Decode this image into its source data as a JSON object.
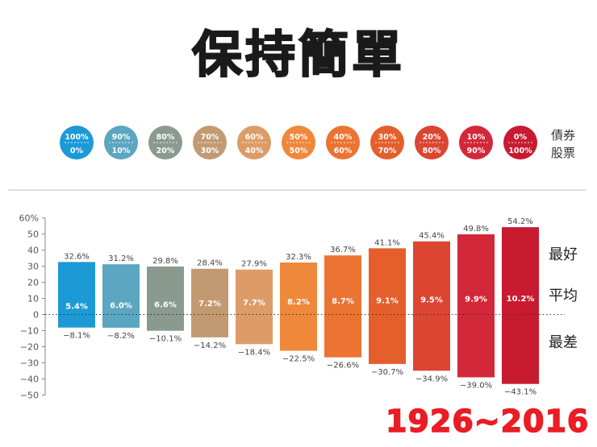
{
  "title": "保持簡單",
  "period": "1926~2016",
  "allocation_legend": {
    "bond_label": "債券",
    "stock_label": "股票",
    "mixes": [
      {
        "bonds": "100%",
        "stocks": "0%"
      },
      {
        "bonds": "90%",
        "stocks": "10%"
      },
      {
        "bonds": "80%",
        "stocks": "20%"
      },
      {
        "bonds": "70%",
        "stocks": "30%"
      },
      {
        "bonds": "60%",
        "stocks": "40%"
      },
      {
        "bonds": "50%",
        "stocks": "50%"
      },
      {
        "bonds": "40%",
        "stocks": "60%"
      },
      {
        "bonds": "30%",
        "stocks": "70%"
      },
      {
        "bonds": "20%",
        "stocks": "80%"
      },
      {
        "bonds": "10%",
        "stocks": "90%"
      },
      {
        "bonds": "0%",
        "stocks": "100%"
      }
    ]
  },
  "colors": [
    "#1b9ad6",
    "#5ba6c1",
    "#8a9a8f",
    "#c29a72",
    "#dd9c67",
    "#f0883b",
    "#ec7433",
    "#e55f2c",
    "#dc4532",
    "#d3283a",
    "#c81b30"
  ],
  "chart_data": {
    "type": "bar",
    "ylim": [
      -50,
      60
    ],
    "yticks": [
      60,
      50,
      40,
      30,
      20,
      10,
      0,
      -10,
      -20,
      -30,
      -40,
      -50
    ],
    "ytick_labels": [
      "60%",
      "50",
      "40",
      "30",
      "20",
      "10",
      "0",
      "−10",
      "−20",
      "−30",
      "−40",
      "−50"
    ],
    "series": [
      {
        "name": "最好",
        "values": [
          32.6,
          31.2,
          29.8,
          28.4,
          27.9,
          32.3,
          36.7,
          41.1,
          45.4,
          49.8,
          54.2
        ],
        "labels": [
          "32.6%",
          "31.2%",
          "29.8%",
          "28.4%",
          "27.9%",
          "32.3%",
          "36.7%",
          "41.1%",
          "45.4%",
          "49.8%",
          "54.2%"
        ]
      },
      {
        "name": "平均",
        "values": [
          5.4,
          6.0,
          6.6,
          7.2,
          7.7,
          8.2,
          8.7,
          9.1,
          9.5,
          9.9,
          10.2
        ],
        "labels": [
          "5.4%",
          "6.0%",
          "6.6%",
          "7.2%",
          "7.7%",
          "8.2%",
          "8.7%",
          "9.1%",
          "9.5%",
          "9.9%",
          "10.2%"
        ]
      },
      {
        "name": "最差",
        "values": [
          -8.1,
          -8.2,
          -10.1,
          -14.2,
          -18.4,
          -22.5,
          -26.6,
          -30.7,
          -34.9,
          -39.0,
          -43.1
        ],
        "labels": [
          "−8.1%",
          "−8.2%",
          "−10.1%",
          "−14.2%",
          "−18.4%",
          "−22.5%",
          "−26.6%",
          "−30.7%",
          "−34.9%",
          "−39.0%",
          "−43.1%"
        ]
      }
    ]
  }
}
